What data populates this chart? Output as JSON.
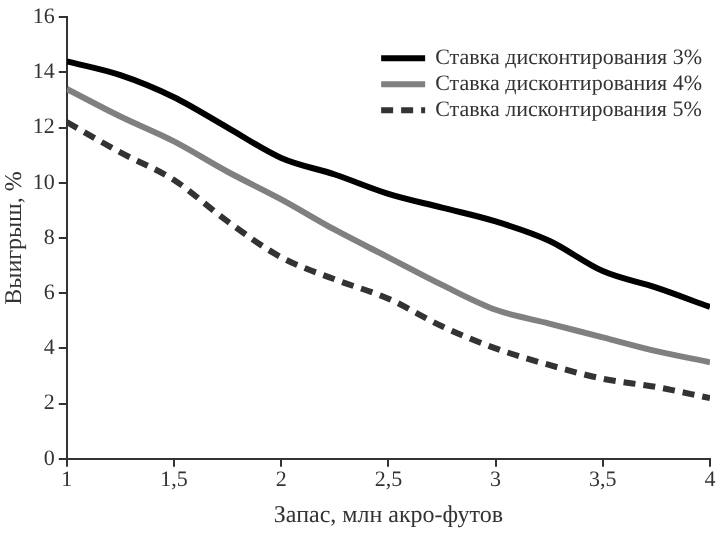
{
  "chart_data": {
    "type": "line",
    "xlabel": "Запас, млн акро-футов",
    "ylabel": "Выигрыш, %",
    "x": [
      1,
      1.25,
      1.5,
      1.75,
      2,
      2.25,
      2.5,
      2.75,
      3,
      3.25,
      3.5,
      3.75,
      4
    ],
    "series": [
      {
        "name": "Ставка дисконтирования 3%",
        "color": "#000000",
        "line_style": "solid",
        "values": [
          14.4,
          13.9,
          13.1,
          12.0,
          10.9,
          10.3,
          9.6,
          9.1,
          8.6,
          7.9,
          6.8,
          6.2,
          5.5
        ]
      },
      {
        "name": "Ставка дисконтирования 4%",
        "color": "#808080",
        "line_style": "solid",
        "values": [
          13.4,
          12.4,
          11.5,
          10.4,
          9.4,
          8.3,
          7.3,
          6.3,
          5.4,
          4.9,
          4.4,
          3.9,
          3.5
        ]
      },
      {
        "name": "Ставка лисконтирования 5%",
        "color": "#333333",
        "line_style": "dashed",
        "values": [
          12.2,
          11.1,
          10.1,
          8.6,
          7.3,
          6.5,
          5.8,
          4.8,
          4.0,
          3.4,
          2.9,
          2.6,
          2.2
        ]
      }
    ],
    "xlim": [
      1,
      4
    ],
    "xticks": [
      1,
      {
        "value": 1.5,
        "label": "1,5"
      },
      2,
      {
        "value": 2.5,
        "label": "2,5"
      },
      3,
      {
        "value": 3.5,
        "label": "3,5"
      },
      4
    ],
    "ylim": [
      0,
      16
    ],
    "yticks": [
      0,
      2,
      4,
      6,
      8,
      10,
      12,
      14,
      16
    ],
    "grid": false,
    "legend": "top right",
    "marker": "none"
  }
}
